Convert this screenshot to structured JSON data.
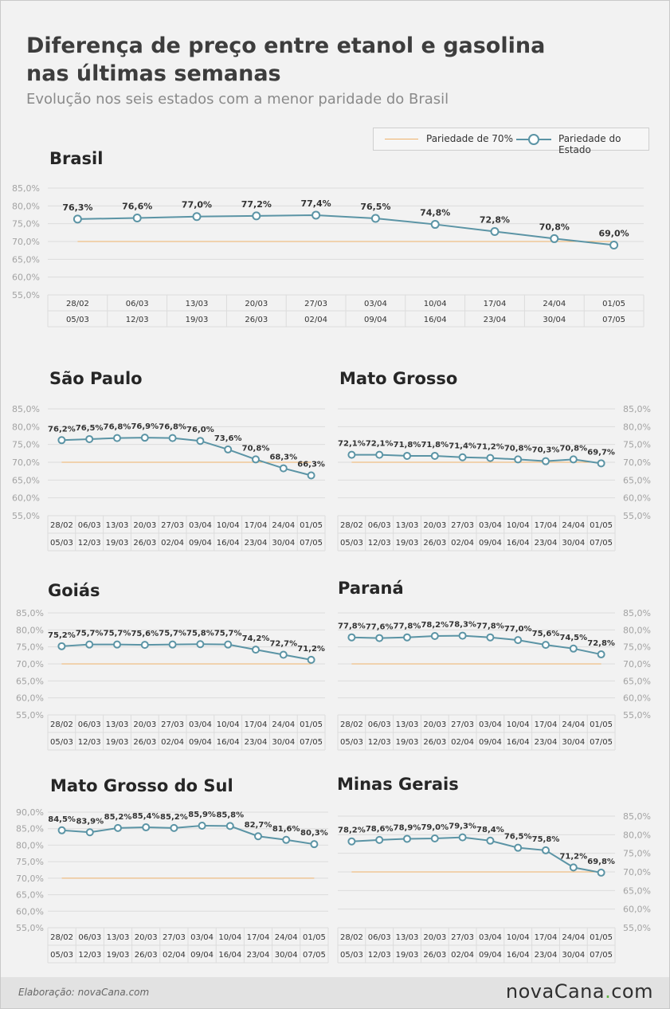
{
  "header": {
    "title_line1": "Diferença de preço entre etanol e gasolina",
    "title_line2": "nas últimas semanas",
    "subtitle": "Evolução nos seis estados com a menor paridade do Brasil"
  },
  "legend": {
    "reference": "Pariedade de 70%",
    "state": "Pariedade do Estado",
    "reference_color": "#efb26b",
    "state_color": "#5b94a5"
  },
  "weeks_start": [
    "28/02",
    "06/03",
    "13/03",
    "20/03",
    "27/03",
    "03/04",
    "10/04",
    "17/04",
    "24/04",
    "01/05"
  ],
  "weeks_end": [
    "05/03",
    "12/03",
    "19/03",
    "26/03",
    "02/04",
    "09/04",
    "16/04",
    "23/04",
    "30/04",
    "07/05"
  ],
  "chart_data": [
    {
      "id": "brasil",
      "type": "line",
      "title": "Brasil",
      "yticks": [
        "85,0%",
        "80,0%",
        "75,0%",
        "70,0%",
        "65,0%",
        "60,0%",
        "55,0%"
      ],
      "ylim": [
        55,
        85
      ],
      "reference": 70,
      "axis_side": "left",
      "values": [
        76.3,
        76.6,
        77.0,
        77.2,
        77.4,
        76.5,
        74.8,
        72.8,
        70.8,
        69.0
      ],
      "labels": [
        "76,3%",
        "76,6%",
        "77,0%",
        "77,2%",
        "77,4%",
        "76,5%",
        "74,8%",
        "72,8%",
        "70,8%",
        "69,0%"
      ]
    },
    {
      "id": "sao-paulo",
      "type": "line",
      "title": "São Paulo",
      "yticks": [
        "85,0%",
        "80,0%",
        "75,0%",
        "70,0%",
        "65,0%",
        "60,0%",
        "55,0%"
      ],
      "ylim": [
        55,
        85
      ],
      "reference": 70,
      "axis_side": "left",
      "values": [
        76.2,
        76.5,
        76.8,
        76.9,
        76.8,
        76.0,
        73.6,
        70.8,
        68.3,
        66.3
      ],
      "labels": [
        "76,2%",
        "76,5%",
        "76,8%",
        "76,9%",
        "76,8%",
        "76,0%",
        "73,6%",
        "70,8%",
        "68,3%",
        "66,3%"
      ]
    },
    {
      "id": "mato-grosso",
      "type": "line",
      "title": "Mato Grosso",
      "yticks": [
        "85,0%",
        "80,0%",
        "75,0%",
        "70,0%",
        "65,0%",
        "60,0%",
        "55,0%"
      ],
      "ylim": [
        55,
        85
      ],
      "reference": 70,
      "axis_side": "right",
      "values": [
        72.1,
        72.1,
        71.8,
        71.8,
        71.4,
        71.2,
        70.8,
        70.3,
        70.8,
        69.7
      ],
      "labels": [
        "72,1%",
        "72,1%",
        "71,8%",
        "71,8%",
        "71,4%",
        "71,2%",
        "70,8%",
        "70,3%",
        "70,8%",
        "69,7%"
      ]
    },
    {
      "id": "goias",
      "type": "line",
      "title": "Goiás",
      "yticks": [
        "85,0%",
        "80,0%",
        "75,0%",
        "70,0%",
        "65,0%",
        "60,0%",
        "55,0%"
      ],
      "ylim": [
        55,
        85
      ],
      "reference": 70,
      "axis_side": "left",
      "values": [
        75.2,
        75.7,
        75.7,
        75.6,
        75.7,
        75.8,
        75.7,
        74.2,
        72.7,
        71.2
      ],
      "labels": [
        "75,2%",
        "75,7%",
        "75,7%",
        "75,6%",
        "75,7%",
        "75,8%",
        "75,7%",
        "74,2%",
        "72,7%",
        "71,2%"
      ]
    },
    {
      "id": "parana",
      "type": "line",
      "title": "Paraná",
      "yticks": [
        "85,0%",
        "80,0%",
        "75,0%",
        "70,0%",
        "65,0%",
        "60,0%",
        "55,0%"
      ],
      "ylim": [
        55,
        85
      ],
      "reference": 70,
      "axis_side": "right",
      "values": [
        77.8,
        77.6,
        77.8,
        78.2,
        78.3,
        77.8,
        77.0,
        75.6,
        74.5,
        72.8
      ],
      "labels": [
        "77,8%",
        "77,6%",
        "77,8%",
        "78,2%",
        "78,3%",
        "77,8%",
        "77,0%",
        "75,6%",
        "74,5%",
        "72,8%"
      ]
    },
    {
      "id": "mato-grosso-do-sul",
      "type": "line",
      "title": "Mato Grosso do Sul",
      "yticks": [
        "90,0%",
        "85,0%",
        "80,0%",
        "75,0%",
        "70,0%",
        "65,0%",
        "60,0%",
        "55,0%"
      ],
      "ylim": [
        55,
        90
      ],
      "reference": 70,
      "axis_side": "left",
      "values": [
        84.5,
        83.9,
        85.2,
        85.4,
        85.2,
        85.9,
        85.8,
        82.7,
        81.6,
        80.3
      ],
      "labels": [
        "84,5%",
        "83,9%",
        "85,2%",
        "85,4%",
        "85,2%",
        "85,9%",
        "85,8%",
        "82,7%",
        "81,6%",
        "80,3%"
      ]
    },
    {
      "id": "minas-gerais",
      "type": "line",
      "title": "Minas Gerais",
      "yticks": [
        "85,0%",
        "80,0%",
        "75,0%",
        "70,0%",
        "65,0%",
        "60,0%",
        "55,0%"
      ],
      "ylim": [
        55,
        85
      ],
      "reference": 70,
      "axis_side": "right",
      "values": [
        78.2,
        78.6,
        78.9,
        79.0,
        79.3,
        78.4,
        76.5,
        75.8,
        71.2,
        69.8
      ],
      "labels": [
        "78,2%",
        "78,6%",
        "78,9%",
        "79,0%",
        "79,3%",
        "78,4%",
        "76,5%",
        "75,8%",
        "71,2%",
        "69,8%"
      ]
    }
  ],
  "footer": {
    "credit": "Elaboração: novaCana.com",
    "logo_main": "novaCana",
    "logo_dot": ".",
    "logo_tld": "com"
  }
}
